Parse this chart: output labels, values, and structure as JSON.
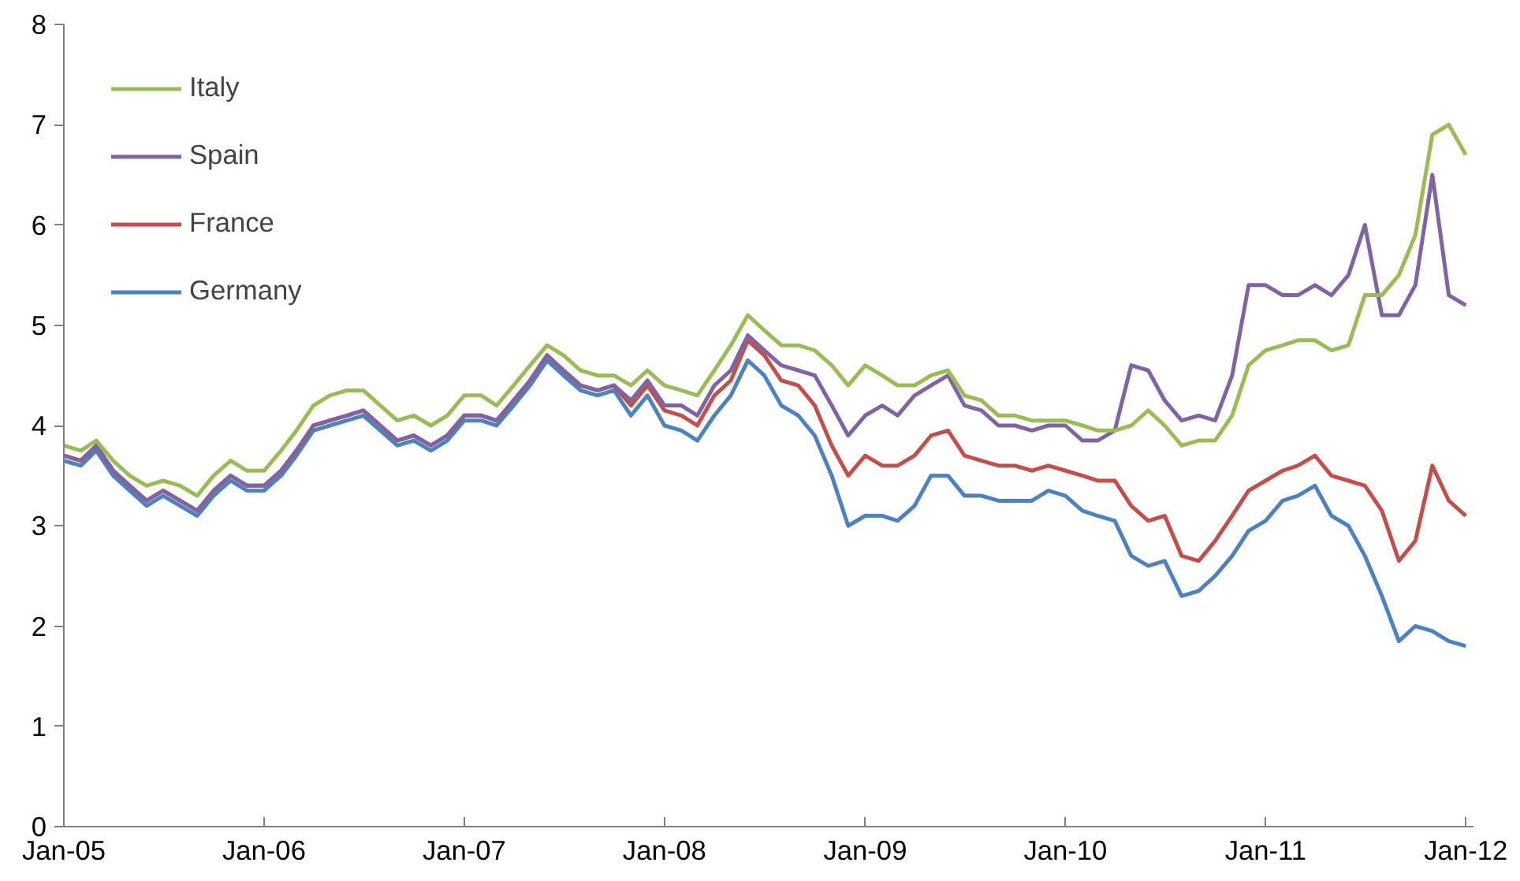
{
  "chart_data": {
    "type": "line",
    "x": [
      "2005-01",
      "2005-02",
      "2005-03",
      "2005-04",
      "2005-05",
      "2005-06",
      "2005-07",
      "2005-08",
      "2005-09",
      "2005-10",
      "2005-11",
      "2005-12",
      "2006-01",
      "2006-02",
      "2006-03",
      "2006-04",
      "2006-05",
      "2006-06",
      "2006-07",
      "2006-08",
      "2006-09",
      "2006-10",
      "2006-11",
      "2006-12",
      "2007-01",
      "2007-02",
      "2007-03",
      "2007-04",
      "2007-05",
      "2007-06",
      "2007-07",
      "2007-08",
      "2007-09",
      "2007-10",
      "2007-11",
      "2007-12",
      "2008-01",
      "2008-02",
      "2008-03",
      "2008-04",
      "2008-05",
      "2008-06",
      "2008-07",
      "2008-08",
      "2008-09",
      "2008-10",
      "2008-11",
      "2008-12",
      "2009-01",
      "2009-02",
      "2009-03",
      "2009-04",
      "2009-05",
      "2009-06",
      "2009-07",
      "2009-08",
      "2009-09",
      "2009-10",
      "2009-11",
      "2009-12",
      "2010-01",
      "2010-02",
      "2010-03",
      "2010-04",
      "2010-05",
      "2010-06",
      "2010-07",
      "2010-08",
      "2010-09",
      "2010-10",
      "2010-11",
      "2010-12",
      "2011-01",
      "2011-02",
      "2011-03",
      "2011-04",
      "2011-05",
      "2011-06",
      "2011-07",
      "2011-08",
      "2011-09",
      "2011-10",
      "2011-11",
      "2011-12",
      "2012-01"
    ],
    "series": [
      {
        "name": "Italy",
        "color": "#9bbb59",
        "values": [
          3.8,
          3.75,
          3.85,
          3.65,
          3.5,
          3.4,
          3.45,
          3.4,
          3.3,
          3.5,
          3.65,
          3.55,
          3.55,
          3.75,
          3.95,
          4.2,
          4.3,
          4.35,
          4.35,
          4.2,
          4.05,
          4.1,
          4.0,
          4.1,
          4.3,
          4.3,
          4.2,
          4.4,
          4.6,
          4.8,
          4.7,
          4.55,
          4.5,
          4.5,
          4.4,
          4.55,
          4.4,
          4.35,
          4.3,
          4.55,
          4.8,
          5.1,
          4.95,
          4.8,
          4.8,
          4.75,
          4.6,
          4.4,
          4.6,
          4.5,
          4.4,
          4.4,
          4.5,
          4.55,
          4.3,
          4.25,
          4.1,
          4.1,
          4.05,
          4.05,
          4.05,
          4.0,
          3.95,
          3.95,
          4.0,
          4.15,
          4.0,
          3.8,
          3.85,
          3.85,
          4.1,
          4.6,
          4.75,
          4.8,
          4.85,
          4.85,
          4.75,
          4.8,
          5.3,
          5.3,
          5.5,
          5.9,
          6.9,
          7.0,
          6.7
        ]
      },
      {
        "name": "Spain",
        "color": "#8064a2",
        "values": [
          3.7,
          3.65,
          3.8,
          3.55,
          3.4,
          3.25,
          3.35,
          3.25,
          3.15,
          3.35,
          3.5,
          3.4,
          3.4,
          3.55,
          3.75,
          4.0,
          4.05,
          4.1,
          4.15,
          4.0,
          3.85,
          3.9,
          3.8,
          3.9,
          4.1,
          4.1,
          4.05,
          4.25,
          4.45,
          4.7,
          4.55,
          4.4,
          4.35,
          4.4,
          4.25,
          4.45,
          4.2,
          4.2,
          4.1,
          4.4,
          4.55,
          4.9,
          4.75,
          4.6,
          4.55,
          4.5,
          4.2,
          3.9,
          4.1,
          4.2,
          4.1,
          4.3,
          4.4,
          4.5,
          4.2,
          4.15,
          4.0,
          4.0,
          3.95,
          4.0,
          4.0,
          3.85,
          3.85,
          3.95,
          4.6,
          4.55,
          4.25,
          4.05,
          4.1,
          4.05,
          4.5,
          5.4,
          5.4,
          5.3,
          5.3,
          5.4,
          5.3,
          5.5,
          6.0,
          5.1,
          5.1,
          5.4,
          6.5,
          5.3,
          5.2
        ]
      },
      {
        "name": "France",
        "color": "#c0504d",
        "values": [
          3.7,
          3.65,
          3.8,
          3.55,
          3.4,
          3.25,
          3.35,
          3.25,
          3.15,
          3.35,
          3.5,
          3.4,
          3.4,
          3.55,
          3.75,
          4.0,
          4.05,
          4.1,
          4.15,
          4.0,
          3.85,
          3.9,
          3.8,
          3.9,
          4.1,
          4.1,
          4.05,
          4.25,
          4.45,
          4.7,
          4.55,
          4.4,
          4.35,
          4.4,
          4.2,
          4.4,
          4.15,
          4.1,
          4.0,
          4.3,
          4.45,
          4.85,
          4.7,
          4.45,
          4.4,
          4.2,
          3.8,
          3.5,
          3.7,
          3.6,
          3.6,
          3.7,
          3.9,
          3.95,
          3.7,
          3.65,
          3.6,
          3.6,
          3.55,
          3.6,
          3.55,
          3.5,
          3.45,
          3.45,
          3.2,
          3.05,
          3.1,
          2.7,
          2.65,
          2.85,
          3.1,
          3.35,
          3.45,
          3.55,
          3.6,
          3.7,
          3.5,
          3.45,
          3.4,
          3.15,
          2.65,
          2.85,
          3.6,
          3.25,
          3.1
        ]
      },
      {
        "name": "Germany",
        "color": "#4f81bd",
        "values": [
          3.65,
          3.6,
          3.75,
          3.5,
          3.35,
          3.2,
          3.3,
          3.2,
          3.1,
          3.3,
          3.45,
          3.35,
          3.35,
          3.5,
          3.7,
          3.95,
          4.0,
          4.05,
          4.1,
          3.95,
          3.8,
          3.85,
          3.75,
          3.85,
          4.05,
          4.05,
          4.0,
          4.2,
          4.4,
          4.65,
          4.5,
          4.35,
          4.3,
          4.35,
          4.1,
          4.3,
          4.0,
          3.95,
          3.85,
          4.1,
          4.3,
          4.65,
          4.5,
          4.2,
          4.1,
          3.9,
          3.5,
          3.0,
          3.1,
          3.1,
          3.05,
          3.2,
          3.5,
          3.5,
          3.3,
          3.3,
          3.25,
          3.25,
          3.25,
          3.35,
          3.3,
          3.15,
          3.1,
          3.05,
          2.7,
          2.6,
          2.65,
          2.3,
          2.35,
          2.5,
          2.7,
          2.95,
          3.05,
          3.25,
          3.3,
          3.4,
          3.1,
          3.0,
          2.7,
          2.3,
          1.85,
          2.0,
          1.95,
          1.85,
          1.8
        ]
      }
    ],
    "xlim": [
      "2005-01-01",
      "2012-01-15"
    ],
    "xticks": [
      {
        "value": "2005-01",
        "label": "Jan-05"
      },
      {
        "value": "2006-01",
        "label": "Jan-06"
      },
      {
        "value": "2007-01",
        "label": "Jan-07"
      },
      {
        "value": "2008-01",
        "label": "Jan-08"
      },
      {
        "value": "2009-01",
        "label": "Jan-09"
      },
      {
        "value": "2010-01",
        "label": "Jan-10"
      },
      {
        "value": "2011-01",
        "label": "Jan-11"
      },
      {
        "value": "2012-01",
        "label": "Jan-12"
      }
    ],
    "ylim": [
      0,
      8
    ],
    "yticks": [
      0,
      1,
      2,
      3,
      4,
      5,
      6,
      7,
      8
    ],
    "grid": false,
    "legend": "top left",
    "marker": "none",
    "line_style": "solid"
  }
}
